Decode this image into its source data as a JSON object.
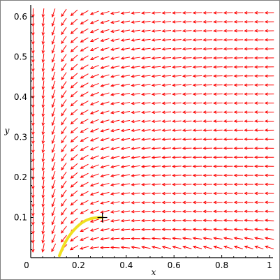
{
  "chart_data": {
    "type": "vector_field",
    "title": "",
    "xlabel": "x",
    "ylabel": "y",
    "xlim": [
      0,
      1.03
    ],
    "ylim": [
      0,
      0.62
    ],
    "x_ticks": [
      "0",
      "0.2",
      "0.4",
      "0.6",
      "0.8",
      "1"
    ],
    "x_tick_values": [
      0,
      0.2,
      0.4,
      0.6,
      0.8,
      1.0
    ],
    "y_ticks": [
      "0.1",
      "0.2",
      "0.3",
      "0.4",
      "0.5",
      "0.6"
    ],
    "y_tick_values": [
      0.1,
      0.2,
      0.3,
      0.4,
      0.5,
      0.6
    ],
    "grid": false,
    "arrow_color": "#ff0000",
    "trajectory_color": "#f0e020",
    "marker": {
      "x": 0.3,
      "y": 0.1,
      "shape": "cross"
    },
    "trajectory": [
      [
        0.12,
        0.005
      ],
      [
        0.145,
        0.04
      ],
      [
        0.175,
        0.066
      ],
      [
        0.21,
        0.086
      ],
      [
        0.245,
        0.097
      ],
      [
        0.28,
        0.1
      ],
      [
        0.3,
        0.1
      ]
    ],
    "field_grid": {
      "x_start": 0.01,
      "x_end": 1.0,
      "nx": 24,
      "y_start": 0.025,
      "y_end": 0.61,
      "ny": 27
    }
  }
}
